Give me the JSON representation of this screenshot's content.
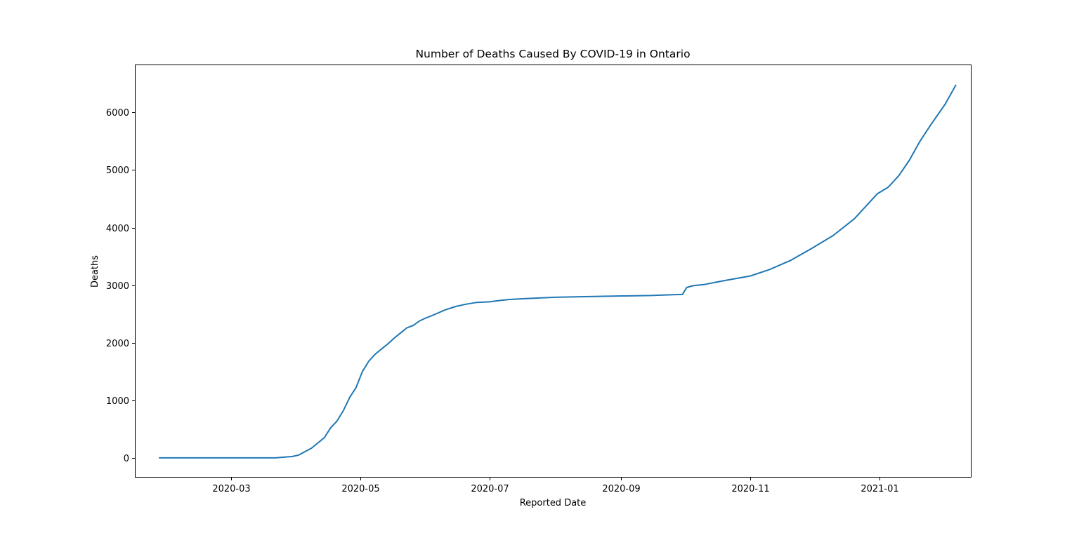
{
  "chart_data": {
    "type": "line",
    "title": "Number of Deaths Caused By COVID-19 in Ontario",
    "xlabel": "Reported Date",
    "ylabel": "Deaths",
    "x_is_date": true,
    "xlim": [
      "2020-01-16",
      "2021-02-13"
    ],
    "ylim": [
      -330,
      6820
    ],
    "x_ticks": [
      "2020-03-01",
      "2020-05-01",
      "2020-07-01",
      "2020-09-01",
      "2020-11-01",
      "2021-01-01"
    ],
    "x_tick_labels": [
      "2020-03",
      "2020-05",
      "2020-07",
      "2020-09",
      "2020-11",
      "2021-01"
    ],
    "y_ticks": [
      0,
      1000,
      2000,
      3000,
      4000,
      5000,
      6000
    ],
    "y_tick_labels": [
      "0",
      "1000",
      "2000",
      "3000",
      "4000",
      "5000",
      "6000"
    ],
    "grid": false,
    "legend": false,
    "series": [
      {
        "color": "#1f77b4",
        "x": [
          "2020-01-27",
          "2020-03-22",
          "2020-03-25",
          "2020-03-30",
          "2020-04-02",
          "2020-04-05",
          "2020-04-08",
          "2020-04-11",
          "2020-04-14",
          "2020-04-17",
          "2020-04-20",
          "2020-04-23",
          "2020-04-26",
          "2020-04-29",
          "2020-05-02",
          "2020-05-05",
          "2020-05-08",
          "2020-05-11",
          "2020-05-14",
          "2020-05-17",
          "2020-05-20",
          "2020-05-23",
          "2020-05-26",
          "2020-05-29",
          "2020-06-01",
          "2020-06-05",
          "2020-06-10",
          "2020-06-15",
          "2020-06-20",
          "2020-06-25",
          "2020-07-01",
          "2020-07-05",
          "2020-07-10",
          "2020-07-15",
          "2020-07-20",
          "2020-08-01",
          "2020-08-15",
          "2020-08-28",
          "2020-09-15",
          "2020-09-30",
          "2020-10-02",
          "2020-10-05",
          "2020-10-10",
          "2020-10-20",
          "2020-11-01",
          "2020-11-10",
          "2020-11-20",
          "2020-11-30",
          "2020-12-10",
          "2020-12-20",
          "2020-12-31",
          "2021-01-05",
          "2021-01-10",
          "2021-01-15",
          "2021-01-20",
          "2021-01-25",
          "2021-02-01",
          "2021-02-06"
        ],
        "y": [
          0,
          0,
          10,
          25,
          50,
          110,
          170,
          260,
          350,
          520,
          640,
          820,
          1050,
          1220,
          1500,
          1680,
          1800,
          1890,
          1980,
          2080,
          2170,
          2260,
          2300,
          2380,
          2430,
          2490,
          2570,
          2630,
          2670,
          2700,
          2710,
          2730,
          2750,
          2760,
          2770,
          2790,
          2800,
          2810,
          2820,
          2840,
          2960,
          2990,
          3010,
          3080,
          3160,
          3270,
          3430,
          3640,
          3860,
          4150,
          4590,
          4700,
          4900,
          5170,
          5500,
          5780,
          6150,
          6480
        ]
      }
    ]
  }
}
